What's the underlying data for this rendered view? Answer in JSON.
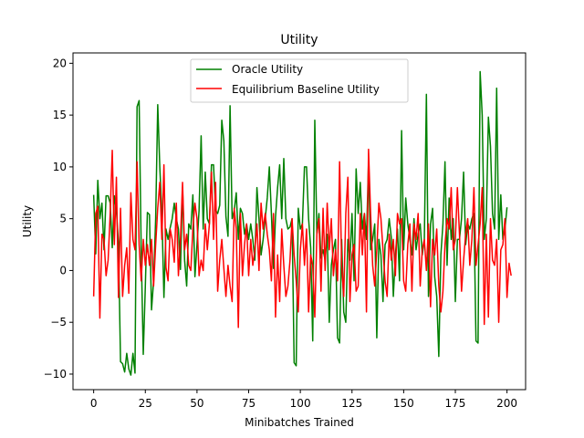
{
  "chart_data": {
    "type": "line",
    "title": "Utility",
    "xlabel": "Minibatches Trained",
    "ylabel": "Utility",
    "xlim": [
      -10,
      209
    ],
    "ylim": [
      -11.5,
      21
    ],
    "xticks": [
      0,
      25,
      50,
      75,
      100,
      125,
      150,
      175,
      200
    ],
    "yticks": [
      -10,
      -5,
      0,
      5,
      10,
      15,
      20
    ],
    "grid": false,
    "legend_position": "upper-center",
    "series": [
      {
        "name": "Oracle Utility",
        "color": "#008000",
        "values": [
          7.3,
          1.6,
          8.7,
          5.0,
          6.5,
          2.0,
          7.2,
          7.2,
          6.5,
          2.2,
          7.2,
          5.8,
          2.6,
          -8.8,
          -9.0,
          -9.8,
          -8.0,
          -9.5,
          -10.1,
          -8.0,
          -9.9,
          15.8,
          16.4,
          2.0,
          -8.1,
          -1.5,
          5.6,
          5.4,
          -3.8,
          -1.0,
          5.0,
          16.0,
          10.0,
          5.5,
          -2.6,
          4.0,
          3.0,
          4.1,
          5.0,
          6.5,
          5.0,
          4.0,
          0.1,
          8.0,
          1.0,
          -1.5,
          4.5,
          4.0,
          7.3,
          -0.6,
          2.5,
          5.8,
          13.0,
          4.0,
          9.5,
          5.0,
          4.5,
          10.2,
          10.2,
          5.8,
          5.5,
          6.3,
          14.5,
          12.5,
          5.2,
          3.3,
          15.9,
          5.0,
          5.8,
          7.5,
          3.0,
          6.0,
          5.5,
          3.5,
          4.5,
          3.0,
          4.5,
          3.0,
          1.0,
          8.0,
          5.0,
          1.5,
          3.0,
          5.0,
          7.0,
          10.0,
          5.5,
          0.2,
          5.2,
          8.0,
          10.2,
          5.0,
          10.8,
          5.0,
          4.0,
          4.2,
          5.0,
          -8.9,
          -9.2,
          6.0,
          4.0,
          4.5,
          10.0,
          10.0,
          5.0,
          2.2,
          -6.8,
          14.5,
          3.5,
          5.5,
          1.2,
          2.0,
          1.0,
          3.5,
          -5.0,
          0.5,
          2.0,
          3.0,
          -6.5,
          -7.0,
          3.0,
          -4.0,
          -5.0,
          3.0,
          1.0,
          5.5,
          -1.0,
          9.8,
          5.5,
          8.5,
          4.0,
          5.5,
          3.0,
          10.5,
          2.0,
          3.0,
          4.5,
          -6.5,
          3.0,
          1.5,
          -3.0,
          2.5,
          3.0,
          5.0,
          3.2,
          -2.5,
          1.5,
          4.0,
          -1.0,
          13.5,
          2.0,
          7.0,
          4.5,
          3.0,
          1.5,
          5.0,
          2.0,
          3.5,
          4.5,
          1.5,
          3.0,
          17.0,
          -2.5,
          4.5,
          6.0,
          -0.6,
          -2.5,
          -8.3,
          1.5,
          4.5,
          10.5,
          0.5,
          7.0,
          3.0,
          5.0,
          -3.0,
          3.0,
          3.0,
          5.0,
          9.5,
          2.5,
          4.5,
          4.0,
          5.0,
          5.5,
          -6.8,
          -7.0,
          19.2,
          15.0,
          3.0,
          5.0,
          14.8,
          12.0,
          5.5,
          4.0,
          17.6,
          3.0,
          7.3,
          3.0,
          4.0,
          6.1
        ]
      },
      {
        "name": "Equilibrium Baseline Utility",
        "color": "#ff0000",
        "values": [
          -2.5,
          5.5,
          6.2,
          -4.6,
          3.5,
          3.0,
          -0.5,
          1.0,
          5.5,
          11.6,
          2.5,
          9.0,
          -2.6,
          6.0,
          -2.5,
          0.5,
          2.2,
          -2.2,
          7.5,
          3.0,
          2.0,
          10.5,
          2.5,
          -1.0,
          3.0,
          0.5,
          2.5,
          0.5,
          3.0,
          -1.5,
          2.5,
          6.0,
          8.5,
          3.0,
          10.2,
          0.3,
          -1.0,
          4.0,
          3.0,
          0.8,
          6.5,
          -0.5,
          3.0,
          8.5,
          2.0,
          3.5,
          0.5,
          0.0,
          4.0,
          6.5,
          5.0,
          -0.5,
          1.0,
          0.0,
          4.5,
          2.0,
          4.5,
          9.5,
          3.0,
          8.5,
          -2.0,
          1.0,
          3.0,
          0.2,
          -2.5,
          0.5,
          -1.5,
          -3.0,
          6.0,
          4.0,
          -5.5,
          5.5,
          -0.5,
          2.5,
          4.5,
          -0.5,
          3.0,
          0.5,
          2.0,
          4.5,
          0.0,
          6.5,
          4.0,
          5.5,
          3.5,
          2.0,
          -1.0,
          5.5,
          -4.5,
          1.5,
          -3.0,
          4.0,
          0.5,
          -2.5,
          -1.5,
          1.0,
          5.0,
          1.5,
          -1.0,
          -4.0,
          2.0,
          4.5,
          0.5,
          4.0,
          -4.0,
          1.5,
          0.5,
          -4.5,
          3.5,
          5.0,
          -2.0,
          6.0,
          0.0,
          6.5,
          2.0,
          5.0,
          -0.5,
          2.0,
          -1.0,
          10.5,
          0.5,
          -2.5,
          5.5,
          9.0,
          -3.0,
          1.5,
          2.5,
          -2.0,
          -1.5,
          5.5,
          1.5,
          5.5,
          -4.0,
          11.7,
          5.5,
          0.5,
          -1.5,
          2.0,
          6.5,
          5.0,
          2.0,
          -1.0,
          -2.5,
          3.5,
          1.0,
          3.0,
          -0.5,
          5.5,
          4.5,
          5.0,
          -1.0,
          -2.0,
          2.5,
          4.5,
          -2.0,
          4.5,
          3.0,
          5.5,
          -1.5,
          2.0,
          3.0,
          0.0,
          4.5,
          -3.5,
          3.0,
          1.5,
          4.0,
          -1.5,
          -4.0,
          -2.0,
          2.5,
          5.0,
          4.0,
          8.0,
          2.0,
          3.0,
          8.0,
          3.5,
          -2.0,
          1.0,
          3.5,
          5.0,
          0.5,
          3.0,
          8.0,
          0.5,
          2.5,
          4.5,
          8.0,
          -5.2,
          3.5,
          -4.5,
          5.0,
          1.0,
          0.5,
          3.0,
          -5.0,
          2.0,
          2.5,
          5.0,
          -2.6,
          0.7,
          -0.5
        ]
      }
    ]
  }
}
